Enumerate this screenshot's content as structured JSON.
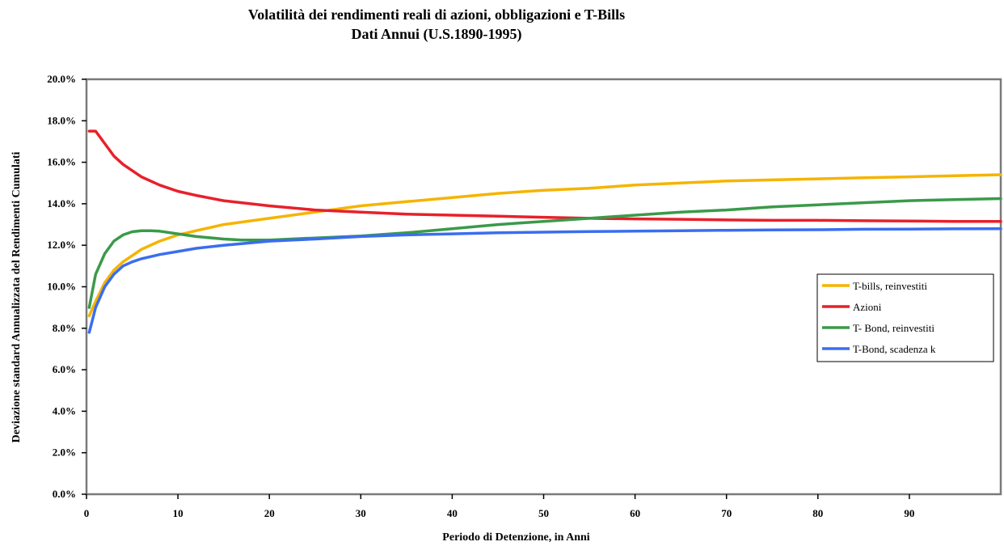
{
  "chart_data": {
    "type": "line",
    "title_line1": "Volatilità dei rendimenti reali di azioni, obbligazioni e T-Bills",
    "title_line2": "Dati Annui (U.S.1890-1995)",
    "xlabel": "Periodo di Detenzione, in Anni",
    "ylabel": "Deviazione standard Annualizzata del Rendimenti Cumulati",
    "xlim": [
      0,
      100
    ],
    "ylim": [
      0,
      20
    ],
    "x_ticks": [
      0,
      10,
      20,
      30,
      40,
      50,
      60,
      70,
      80,
      90
    ],
    "x_tick_labels": [
      "0",
      "10",
      "20",
      "30",
      "40",
      "50",
      "60",
      "70",
      "80",
      "90"
    ],
    "y_ticks": [
      0,
      2,
      4,
      6,
      8,
      10,
      12,
      14,
      16,
      18,
      20
    ],
    "y_tick_labels": [
      "0.0%",
      "2.0%",
      "4.0%",
      "6.0%",
      "8.0%",
      "10.0%",
      "12.0%",
      "14.0%",
      "16.0%",
      "18.0%",
      "20.0%"
    ],
    "grid": false,
    "legend_position": "right",
    "series": [
      {
        "name": "T-bills, reinvestiti",
        "color": "#f5b400",
        "points": [
          [
            0.3,
            8.6
          ],
          [
            1,
            9.3
          ],
          [
            2,
            10.2
          ],
          [
            3,
            10.8
          ],
          [
            4,
            11.2
          ],
          [
            5,
            11.5
          ],
          [
            6,
            11.8
          ],
          [
            8,
            12.2
          ],
          [
            10,
            12.5
          ],
          [
            12,
            12.7
          ],
          [
            15,
            13.0
          ],
          [
            20,
            13.3
          ],
          [
            25,
            13.6
          ],
          [
            30,
            13.9
          ],
          [
            35,
            14.1
          ],
          [
            40,
            14.3
          ],
          [
            45,
            14.5
          ],
          [
            50,
            14.65
          ],
          [
            55,
            14.75
          ],
          [
            60,
            14.9
          ],
          [
            65,
            15.0
          ],
          [
            70,
            15.1
          ],
          [
            75,
            15.15
          ],
          [
            80,
            15.2
          ],
          [
            85,
            15.25
          ],
          [
            90,
            15.3
          ],
          [
            95,
            15.35
          ],
          [
            100,
            15.4
          ]
        ]
      },
      {
        "name": "Azioni",
        "color": "#e8202a",
        "points": [
          [
            0.3,
            17.5
          ],
          [
            1,
            17.5
          ],
          [
            2,
            16.9
          ],
          [
            3,
            16.3
          ],
          [
            4,
            15.9
          ],
          [
            5,
            15.6
          ],
          [
            6,
            15.3
          ],
          [
            8,
            14.9
          ],
          [
            10,
            14.6
          ],
          [
            12,
            14.4
          ],
          [
            15,
            14.15
          ],
          [
            20,
            13.9
          ],
          [
            25,
            13.7
          ],
          [
            30,
            13.6
          ],
          [
            35,
            13.5
          ],
          [
            40,
            13.45
          ],
          [
            45,
            13.4
          ],
          [
            50,
            13.35
          ],
          [
            55,
            13.3
          ],
          [
            60,
            13.27
          ],
          [
            65,
            13.25
          ],
          [
            70,
            13.22
          ],
          [
            75,
            13.2
          ],
          [
            80,
            13.2
          ],
          [
            85,
            13.18
          ],
          [
            90,
            13.17
          ],
          [
            95,
            13.15
          ],
          [
            100,
            13.15
          ]
        ]
      },
      {
        "name": "T- Bond, reinvestiti",
        "color": "#3a9a4a",
        "points": [
          [
            0.3,
            9.0
          ],
          [
            1,
            10.6
          ],
          [
            2,
            11.6
          ],
          [
            3,
            12.2
          ],
          [
            4,
            12.5
          ],
          [
            5,
            12.65
          ],
          [
            6,
            12.7
          ],
          [
            7,
            12.7
          ],
          [
            8,
            12.68
          ],
          [
            10,
            12.55
          ],
          [
            12,
            12.42
          ],
          [
            15,
            12.3
          ],
          [
            17,
            12.25
          ],
          [
            20,
            12.25
          ],
          [
            25,
            12.35
          ],
          [
            30,
            12.45
          ],
          [
            35,
            12.6
          ],
          [
            40,
            12.8
          ],
          [
            45,
            13.0
          ],
          [
            50,
            13.15
          ],
          [
            55,
            13.3
          ],
          [
            60,
            13.45
          ],
          [
            65,
            13.6
          ],
          [
            70,
            13.7
          ],
          [
            75,
            13.85
          ],
          [
            80,
            13.95
          ],
          [
            85,
            14.05
          ],
          [
            90,
            14.15
          ],
          [
            95,
            14.2
          ],
          [
            100,
            14.25
          ]
        ]
      },
      {
        "name": "T-Bond, scadenza k",
        "color": "#3a6df0",
        "points": [
          [
            0.3,
            7.8
          ],
          [
            1,
            9.0
          ],
          [
            2,
            10.0
          ],
          [
            3,
            10.6
          ],
          [
            4,
            11.0
          ],
          [
            5,
            11.2
          ],
          [
            6,
            11.35
          ],
          [
            8,
            11.55
          ],
          [
            10,
            11.7
          ],
          [
            12,
            11.85
          ],
          [
            15,
            12.0
          ],
          [
            20,
            12.2
          ],
          [
            25,
            12.3
          ],
          [
            30,
            12.42
          ],
          [
            35,
            12.5
          ],
          [
            40,
            12.55
          ],
          [
            45,
            12.6
          ],
          [
            50,
            12.63
          ],
          [
            55,
            12.66
          ],
          [
            60,
            12.68
          ],
          [
            65,
            12.7
          ],
          [
            70,
            12.72
          ],
          [
            75,
            12.74
          ],
          [
            80,
            12.75
          ],
          [
            85,
            12.77
          ],
          [
            90,
            12.78
          ],
          [
            95,
            12.79
          ],
          [
            100,
            12.8
          ]
        ]
      }
    ]
  }
}
